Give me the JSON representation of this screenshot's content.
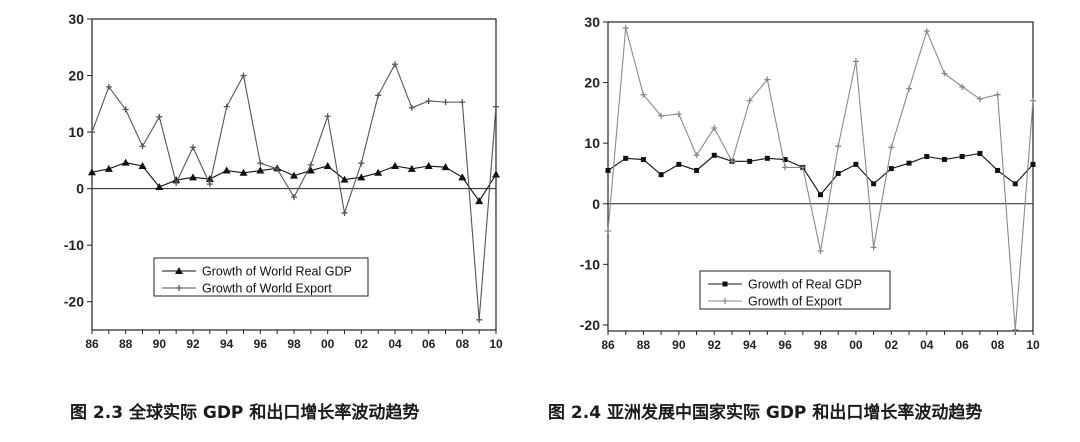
{
  "chart_data": [
    {
      "type": "line",
      "caption": "图 2.3 全球实际 GDP 和出口增长率波动趋势",
      "x": [
        1986,
        1987,
        1988,
        1989,
        1990,
        1991,
        1992,
        1993,
        1994,
        1995,
        1996,
        1997,
        1998,
        1999,
        2000,
        2001,
        2002,
        2003,
        2004,
        2005,
        2006,
        2007,
        2008,
        2009,
        2010
      ],
      "xticks": [
        "86",
        "88",
        "90",
        "92",
        "94",
        "96",
        "98",
        "00",
        "02",
        "04",
        "06",
        "08",
        "10"
      ],
      "yticks": [
        "30",
        "20",
        "10",
        "0",
        "-10",
        "-20"
      ],
      "ylim": [
        -25,
        30
      ],
      "series": [
        {
          "name": "Growth of World Real GDP",
          "marker": "triangle",
          "color": "#111111",
          "values": [
            2.9,
            3.5,
            4.6,
            4.0,
            0.3,
            1.5,
            2.0,
            1.7,
            3.2,
            2.8,
            3.2,
            3.6,
            2.3,
            3.2,
            4.0,
            1.6,
            2.0,
            2.8,
            4.0,
            3.5,
            4.0,
            3.8,
            2.0,
            -2.2,
            2.5
          ]
        },
        {
          "name": "Growth of World Export",
          "marker": "plus",
          "color": "#555555",
          "values": [
            10.0,
            18.0,
            14.0,
            7.5,
            12.7,
            1.0,
            7.3,
            0.8,
            14.5,
            20.0,
            4.5,
            3.5,
            -1.5,
            4.2,
            12.8,
            -4.3,
            4.5,
            16.5,
            22.0,
            14.3,
            15.5,
            15.3,
            15.3,
            -23.2,
            14.5
          ]
        }
      ]
    },
    {
      "type": "line",
      "caption": "图 2.4 亚洲发展中国家实际 GDP 和出口增长率波动趋势",
      "x": [
        1986,
        1987,
        1988,
        1989,
        1990,
        1991,
        1992,
        1993,
        1994,
        1995,
        1996,
        1997,
        1998,
        1999,
        2000,
        2001,
        2002,
        2003,
        2004,
        2005,
        2006,
        2007,
        2008,
        2009,
        2010
      ],
      "xticks": [
        "86",
        "88",
        "90",
        "92",
        "94",
        "96",
        "98",
        "00",
        "02",
        "04",
        "06",
        "08",
        "10"
      ],
      "yticks": [
        "30",
        "20",
        "10",
        "0",
        "-10",
        "-20"
      ],
      "ylim": [
        -21,
        30
      ],
      "series": [
        {
          "name": "Growth of Real GDP",
          "marker": "square",
          "color": "#111111",
          "values": [
            5.5,
            7.5,
            7.3,
            4.8,
            6.5,
            5.5,
            8.0,
            7.0,
            7.0,
            7.5,
            7.3,
            6.0,
            1.5,
            5.0,
            6.5,
            3.3,
            5.8,
            6.7,
            7.8,
            7.3,
            7.8,
            8.3,
            5.5,
            3.3,
            6.5
          ]
        },
        {
          "name": "Growth of Export",
          "marker": "plus",
          "color": "#8a8a8a",
          "values": [
            -4.5,
            29.0,
            18.0,
            14.5,
            14.8,
            8.0,
            12.5,
            7.0,
            17.0,
            20.5,
            6.0,
            6.0,
            -7.8,
            9.5,
            23.5,
            -7.2,
            9.3,
            19.0,
            28.5,
            21.5,
            19.3,
            17.3,
            18.0,
            -20.8,
            17.0
          ]
        }
      ]
    }
  ]
}
